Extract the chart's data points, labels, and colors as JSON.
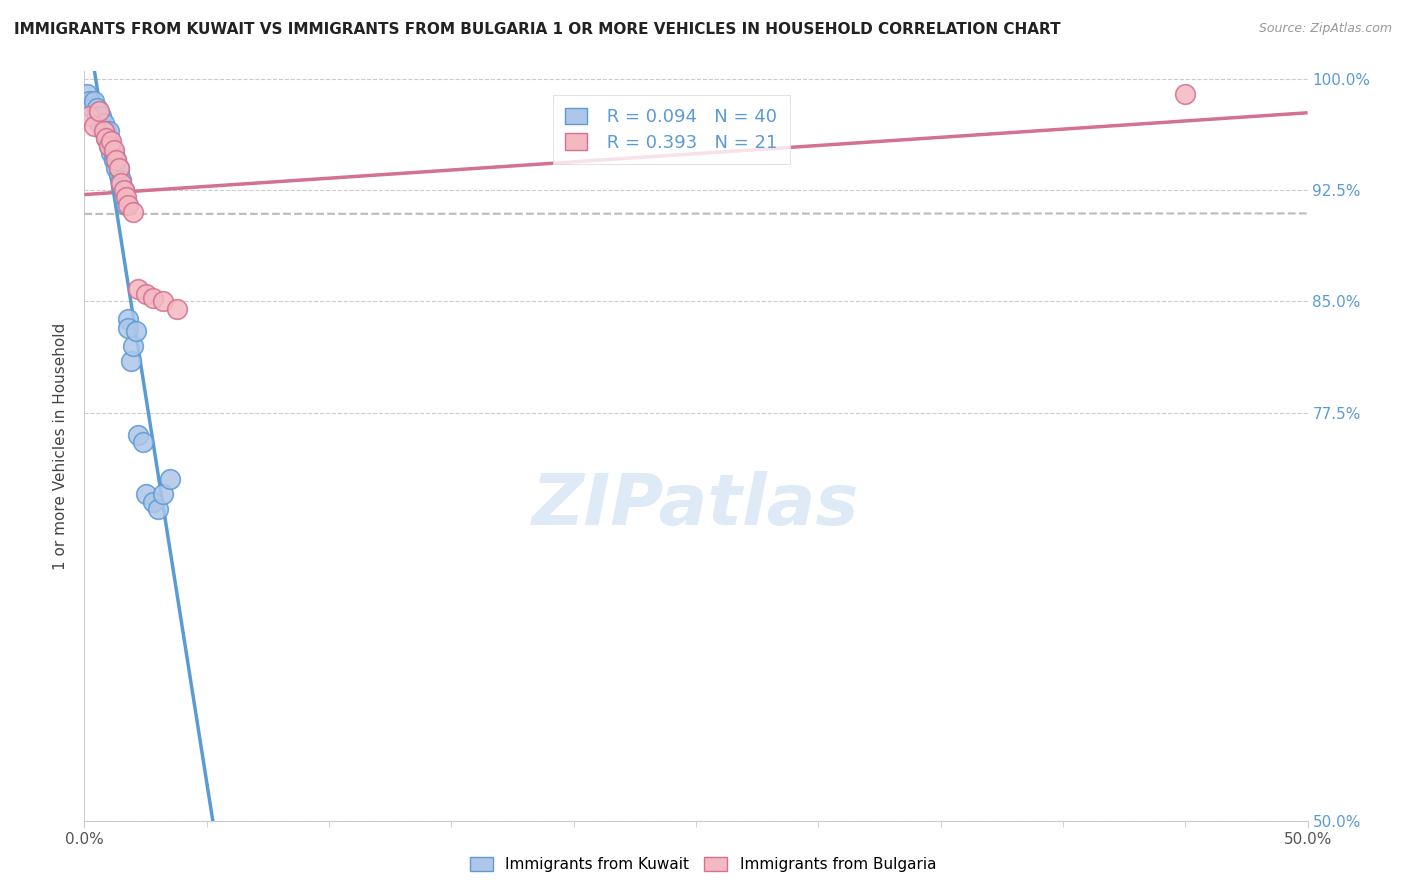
{
  "title": "IMMIGRANTS FROM KUWAIT VS IMMIGRANTS FROM BULGARIA 1 OR MORE VEHICLES IN HOUSEHOLD CORRELATION CHART",
  "source": "Source: ZipAtlas.com",
  "ylabel": "1 or more Vehicles in Household",
  "xlim": [
    0.0,
    0.5
  ],
  "ylim": [
    0.5,
    1.005
  ],
  "xtick_labels": [
    "0.0%",
    "",
    "",
    "",
    "",
    "50.0%"
  ],
  "xtick_vals": [
    0.0,
    0.1,
    0.2,
    0.3,
    0.4,
    0.5
  ],
  "ytick_labels": [
    "100.0%",
    "92.5%",
    "85.0%",
    "77.5%",
    "50.0%"
  ],
  "ytick_vals": [
    1.0,
    0.925,
    0.85,
    0.775,
    0.5
  ],
  "kuwait_R": 0.094,
  "kuwait_N": 40,
  "bulgaria_R": 0.393,
  "bulgaria_N": 21,
  "kuwait_color": "#aec6e8",
  "kuwait_edge": "#5b9bd5",
  "bulgaria_color": "#f4b8c1",
  "bulgaria_edge": "#d47090",
  "trendline_color": "#aaaaaa",
  "watermark_color": "#c8ddf0",
  "kuwait_x": [
    0.001,
    0.002,
    0.003,
    0.004,
    0.005,
    0.005,
    0.006,
    0.007,
    0.008,
    0.008,
    0.009,
    0.009,
    0.01,
    0.01,
    0.01,
    0.011,
    0.011,
    0.012,
    0.012,
    0.013,
    0.013,
    0.014,
    0.014,
    0.015,
    0.015,
    0.016,
    0.016,
    0.017,
    0.018,
    0.018,
    0.019,
    0.02,
    0.021,
    0.022,
    0.024,
    0.025,
    0.028,
    0.03,
    0.032,
    0.035
  ],
  "kuwait_y": [
    0.99,
    0.985,
    0.98,
    0.985,
    0.975,
    0.98,
    0.97,
    0.975,
    0.965,
    0.97,
    0.96,
    0.965,
    0.955,
    0.96,
    0.965,
    0.95,
    0.955,
    0.945,
    0.95,
    0.94,
    0.945,
    0.935,
    0.94,
    0.928,
    0.932,
    0.92,
    0.925,
    0.915,
    0.838,
    0.832,
    0.81,
    0.82,
    0.83,
    0.76,
    0.755,
    0.72,
    0.715,
    0.71,
    0.72,
    0.73
  ],
  "bulgaria_x": [
    0.002,
    0.004,
    0.006,
    0.008,
    0.009,
    0.01,
    0.011,
    0.012,
    0.013,
    0.014,
    0.015,
    0.016,
    0.017,
    0.018,
    0.02,
    0.022,
    0.025,
    0.028,
    0.032,
    0.038,
    0.45
  ],
  "bulgaria_y": [
    0.975,
    0.968,
    0.978,
    0.965,
    0.96,
    0.955,
    0.958,
    0.952,
    0.945,
    0.94,
    0.93,
    0.925,
    0.92,
    0.915,
    0.91,
    0.858,
    0.855,
    0.852,
    0.85,
    0.845,
    0.99
  ]
}
